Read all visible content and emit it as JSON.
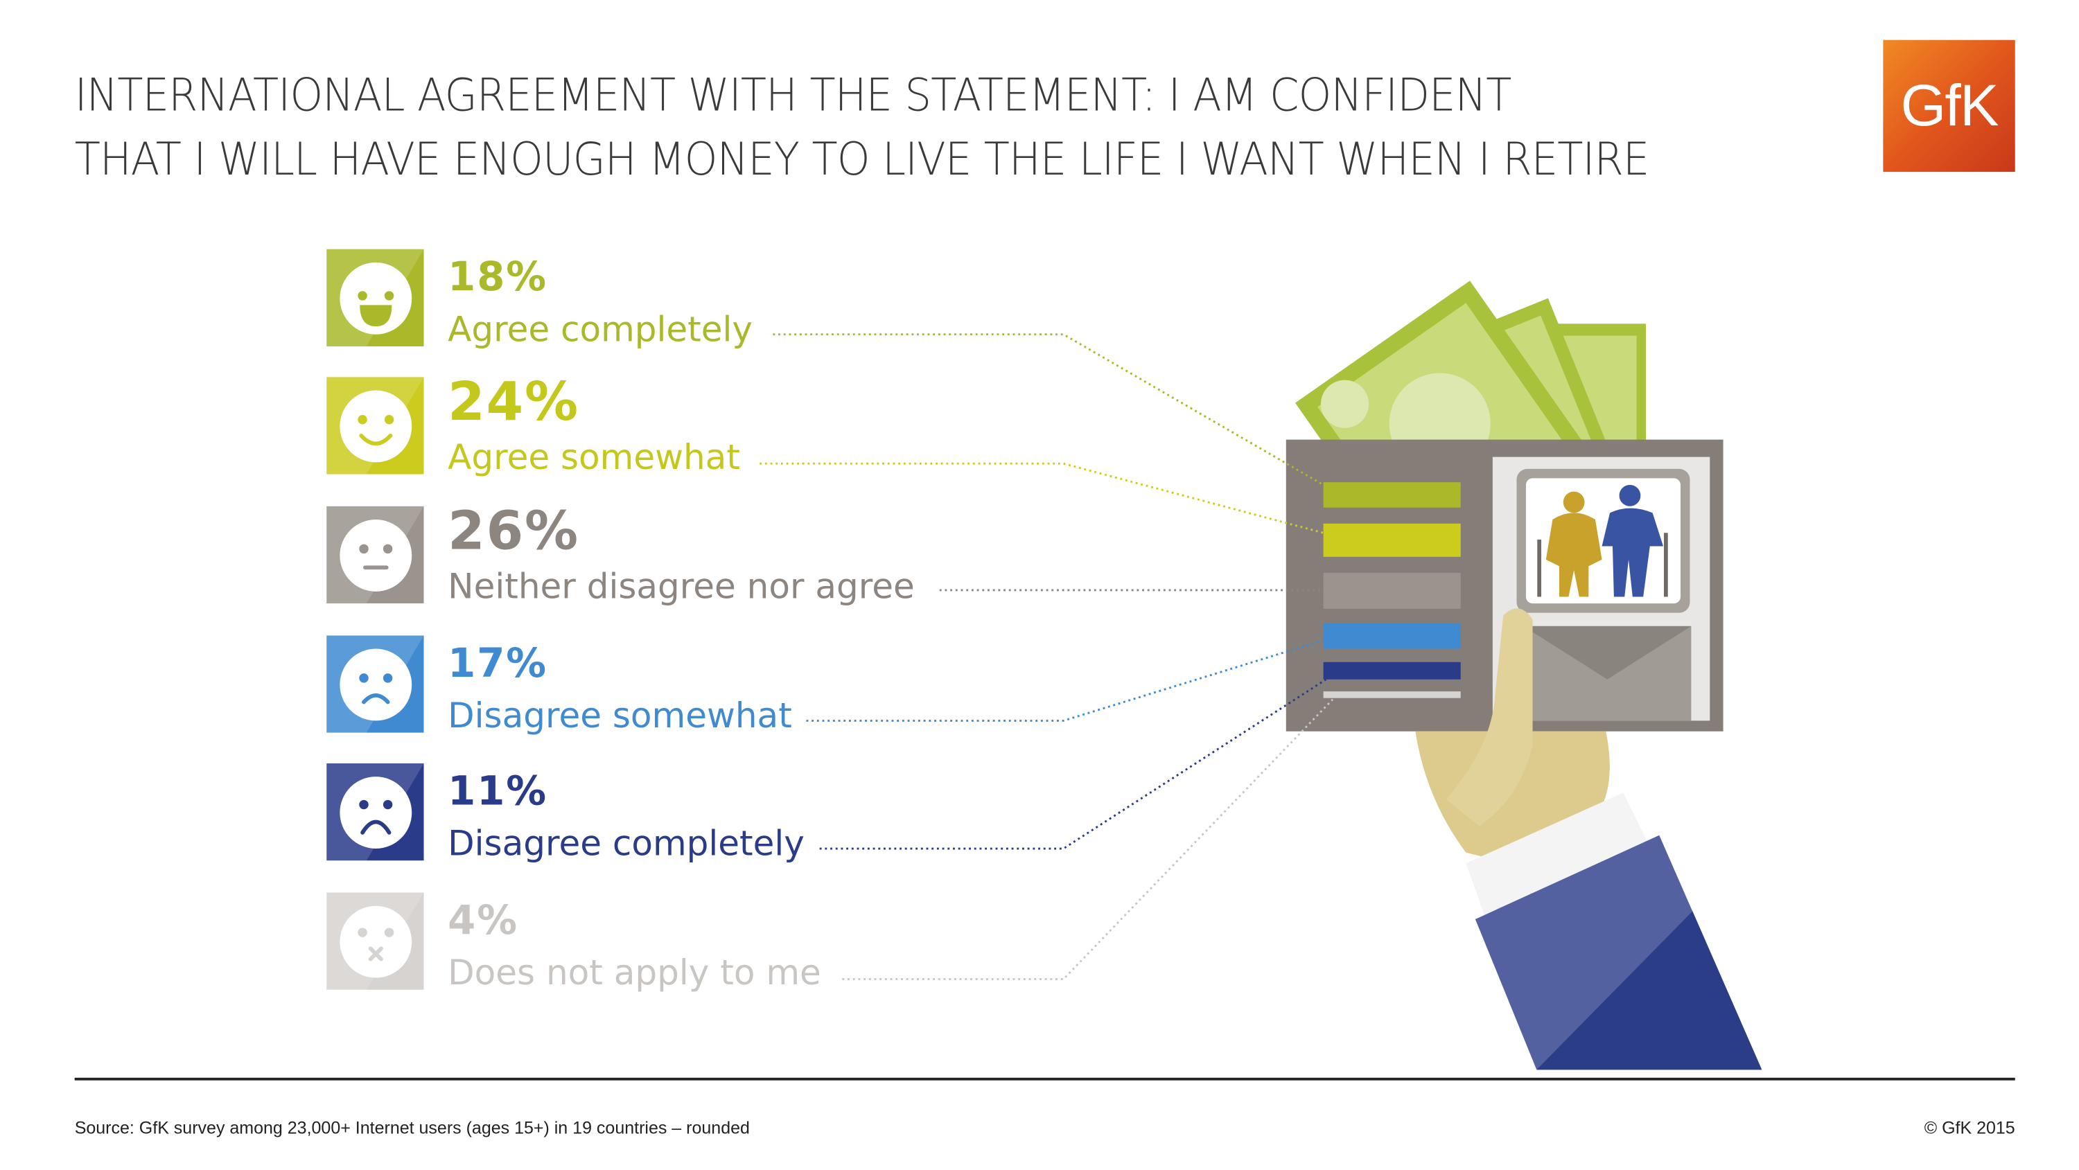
{
  "title": {
    "line1": "International agreement with the statement: I am confident",
    "line2": "that I will have enough money to live the life I want when I retire"
  },
  "logo": "GfK",
  "chart_data": {
    "type": "bar",
    "title": "International agreement with the statement: I am confident that I will have enough money to live the life I want when I retire",
    "categories": [
      "Agree completely",
      "Agree somewhat",
      "Neither disagree nor agree",
      "Disagree somewhat",
      "Disagree completely",
      "Does not apply to me"
    ],
    "values": [
      18,
      24,
      26,
      17,
      11,
      4
    ],
    "unit": "%",
    "items": [
      {
        "pct": "18%",
        "label": "Agree completely",
        "face": "laughing-face-icon",
        "color": "#a9b92a",
        "text_color": "#a9b92a"
      },
      {
        "pct": "24%",
        "label": "Agree somewhat",
        "face": "smiling-face-icon",
        "color": "#cccc1f",
        "text_color": "#c4c81a"
      },
      {
        "pct": "26%",
        "label": "Neither disagree nor agree",
        "face": "neutral-face-icon",
        "color": "#9a938e",
        "text_color": "#8c8580"
      },
      {
        "pct": "17%",
        "label": "Disagree somewhat",
        "face": "frowning-face-icon",
        "color": "#3f8ad0",
        "text_color": "#3f8ad0"
      },
      {
        "pct": "11%",
        "label": "Disagree completely",
        "face": "sad-face-icon",
        "color": "#2a3b8a",
        "text_color": "#2a3b8a"
      },
      {
        "pct": "4%",
        "label": "Does not apply to me",
        "face": "crossed-face-icon",
        "color": "#d6d3d1",
        "text_color": "#c8c5c2"
      }
    ]
  },
  "footer": {
    "source": "Source: GfK survey among 23,000+ Internet users (ages 15+) in 19 countries – rounded",
    "copyright": "© GfK 2015"
  }
}
